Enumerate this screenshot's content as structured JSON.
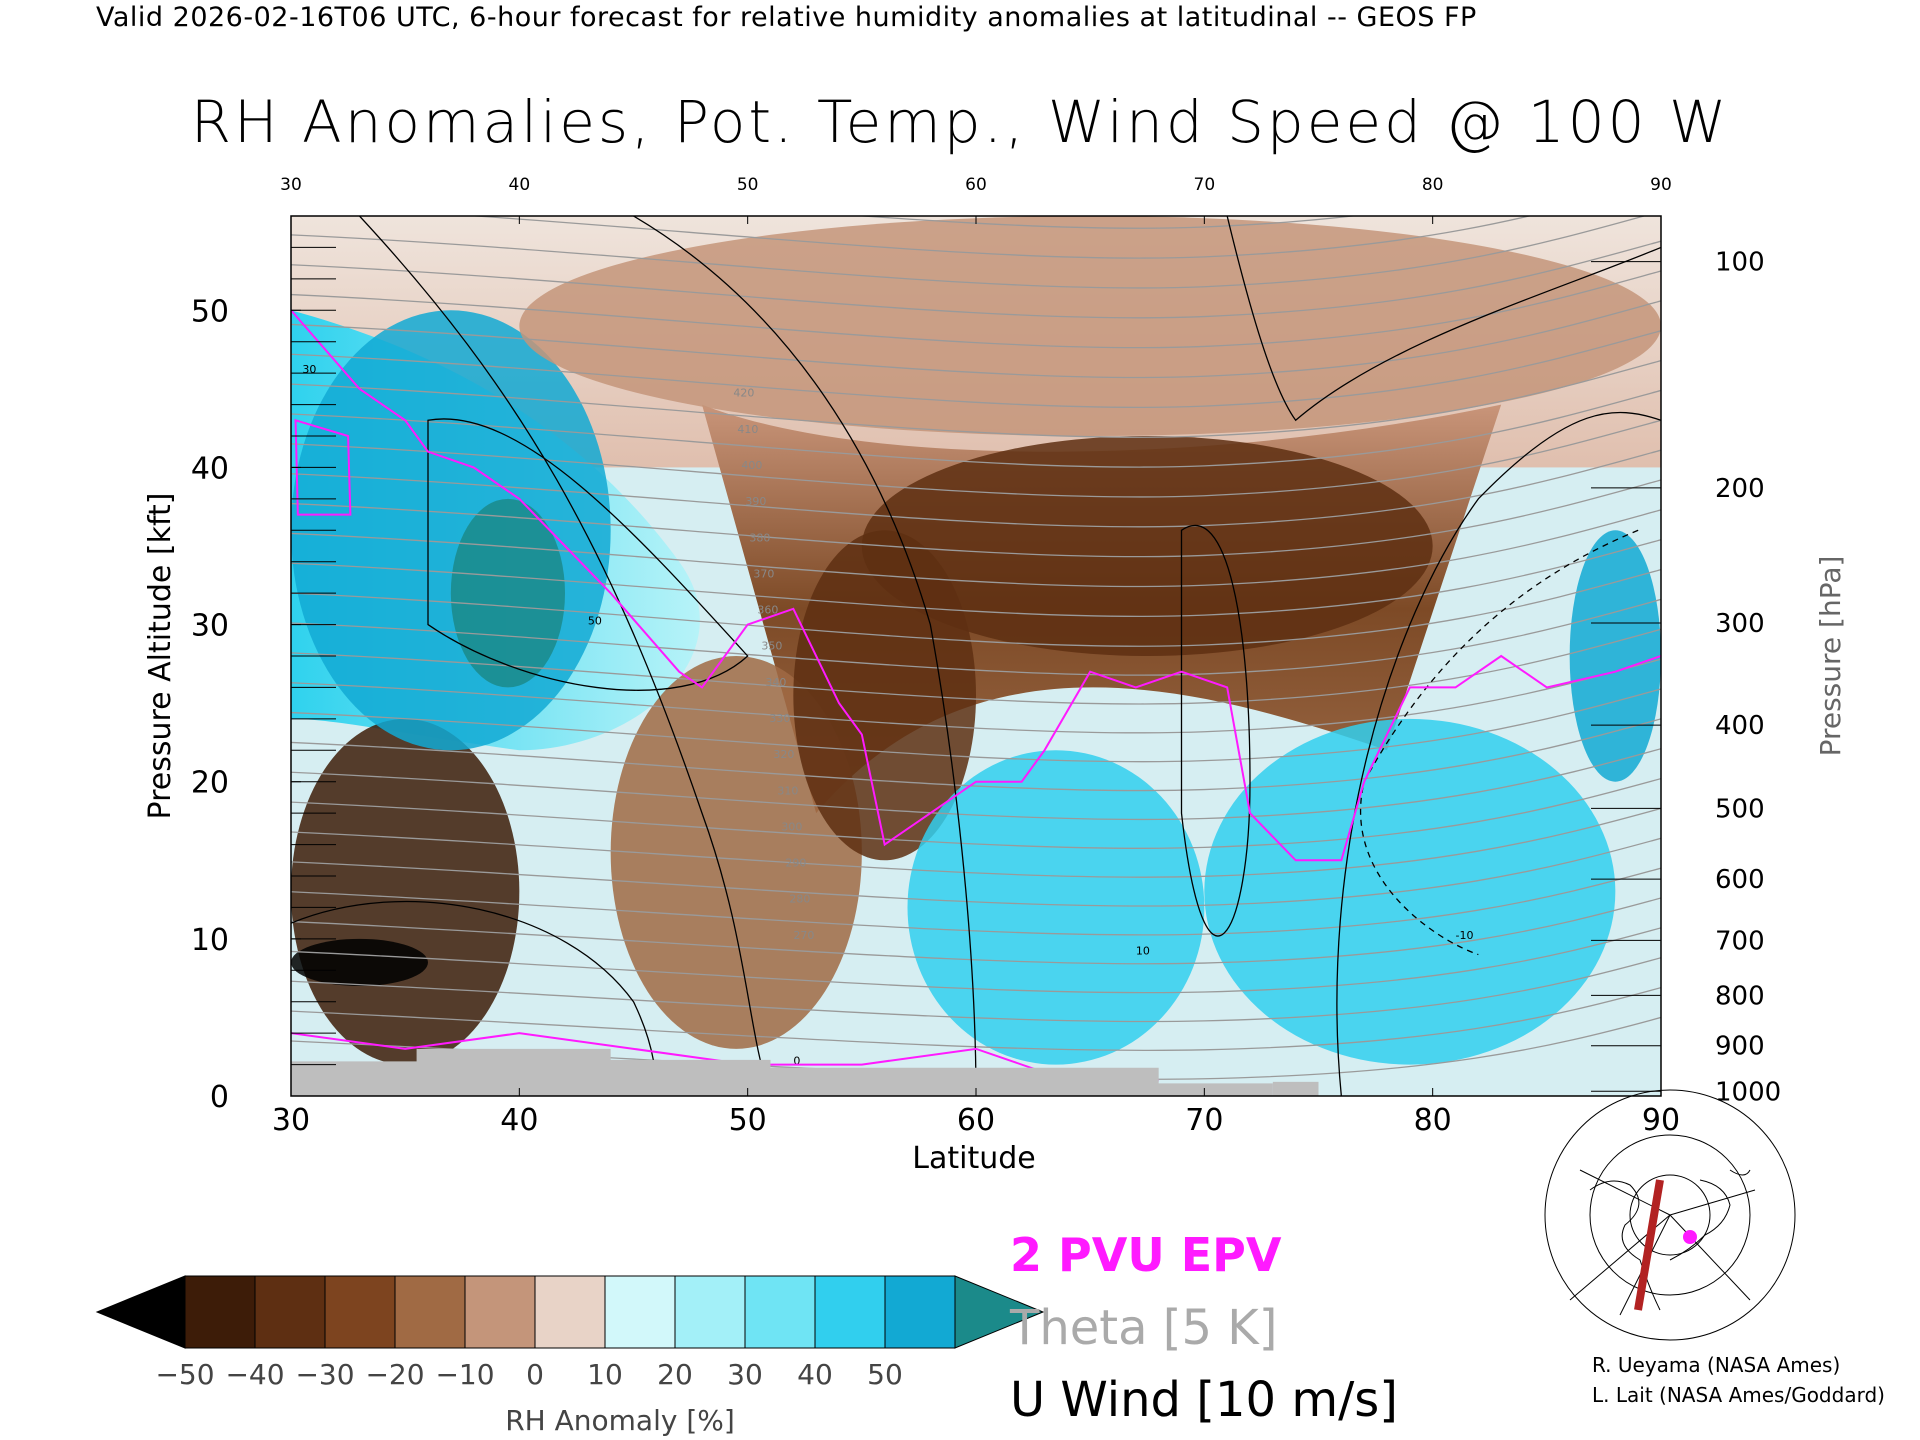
{
  "header": {
    "text": "Valid 2026-02-16T06 UTC, 6-hour forecast for relative humidity anomalies at latitudinal -- GEOS FP"
  },
  "title": "RH Anomalies, Pot. Temp., Wind Speed @ 100 W",
  "chart_data": {
    "type": "heatmap",
    "xlabel": "Latitude",
    "ylabel": "Pressure Altitude [kft]",
    "y2label": "Pressure [hPa]",
    "xlim": [
      30,
      90
    ],
    "ylim": [
      0,
      56
    ],
    "x_ticks": [
      "30",
      "40",
      "50",
      "60",
      "70",
      "80",
      "90"
    ],
    "top_x_ticks": [
      "30",
      "40",
      "50",
      "60",
      "70",
      "80",
      "90"
    ],
    "y_ticks": [
      "0",
      "10",
      "20",
      "30",
      "40",
      "50"
    ],
    "pressure_ticks": [
      {
        "label": "100",
        "kft": 53.1
      },
      {
        "label": "200",
        "kft": 38.7
      },
      {
        "label": "300",
        "kft": 30.1
      },
      {
        "label": "400",
        "kft": 23.6
      },
      {
        "label": "500",
        "kft": 18.3
      },
      {
        "label": "600",
        "kft": 13.8
      },
      {
        "label": "700",
        "kft": 9.9
      },
      {
        "label": "800",
        "kft": 6.4
      },
      {
        "label": "900",
        "kft": 3.2
      },
      {
        "label": "1000",
        "kft": 0.3
      }
    ],
    "rh_regions": [
      {
        "lat": [
          30,
          40
        ],
        "kft": [
          2,
          24
        ],
        "anomaly": -45
      },
      {
        "lat": [
          30,
          36
        ],
        "kft": [
          7,
          10
        ],
        "anomaly": -55
      },
      {
        "lat": [
          30,
          44
        ],
        "kft": [
          22,
          50
        ],
        "anomaly": 40
      },
      {
        "lat": [
          37,
          42
        ],
        "kft": [
          26,
          38
        ],
        "anomaly": 55
      },
      {
        "lat": [
          44,
          55
        ],
        "kft": [
          3,
          28
        ],
        "anomaly": -15
      },
      {
        "lat": [
          52,
          60
        ],
        "kft": [
          15,
          36
        ],
        "anomaly": -35
      },
      {
        "lat": [
          55,
          80
        ],
        "kft": [
          28,
          42
        ],
        "anomaly": -38
      },
      {
        "lat": [
          57,
          70
        ],
        "kft": [
          2,
          22
        ],
        "anomaly": 30
      },
      {
        "lat": [
          70,
          88
        ],
        "kft": [
          2,
          24
        ],
        "anomaly": 35
      },
      {
        "lat": [
          40,
          90
        ],
        "kft": [
          42,
          56
        ],
        "anomaly": -10
      },
      {
        "lat": [
          86,
          90
        ],
        "kft": [
          20,
          36
        ],
        "anomaly": 40
      }
    ],
    "theta_contours": {
      "interval_K": 5,
      "labels": [
        "270",
        "280",
        "290",
        "300",
        "310",
        "320",
        "330",
        "340",
        "350",
        "360",
        "370",
        "380",
        "390",
        "400",
        "410",
        "420"
      ]
    },
    "u_wind_contours": {
      "interval_ms": 10,
      "labels": [
        "-10",
        "0",
        "10",
        "30",
        "50"
      ]
    },
    "epv_contour": {
      "value_pvu": 2
    },
    "colorbar": {
      "label": "RH Anomaly [%]",
      "ticks": [
        "−50",
        "−40",
        "−30",
        "−20",
        "−10",
        "0",
        "10",
        "20",
        "30",
        "40",
        "50"
      ],
      "colors": [
        "#3d1c08",
        "#5e2f12",
        "#7d441f",
        "#a06a44",
        "#c4957a",
        "#e8d3c7",
        "#d2f8fa",
        "#a3f0f8",
        "#6fe4f4",
        "#31cfee",
        "#12a9d3"
      ],
      "under_color": "#000000",
      "over_color": "#1b8a8a"
    },
    "legend": {
      "epv": "2 PVU EPV",
      "theta": "Theta [5 K]",
      "wind": "U Wind [10 m/s]"
    }
  },
  "colors": {
    "epv": "#ff1aff",
    "theta": "#aaaaaa",
    "wind": "#000000",
    "terrain": "#bebebe"
  },
  "credits": {
    "line1": "R. Ueyama (NASA Ames)",
    "line2": "L. Lait (NASA Ames/Goddard)"
  },
  "inset_map": {
    "icon": "polar-stereographic-map-icon"
  }
}
